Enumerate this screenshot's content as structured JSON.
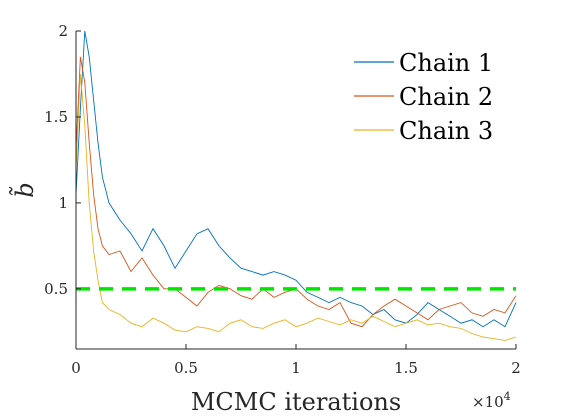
{
  "chart_data": {
    "type": "line",
    "title": "",
    "xlabel": "MCMC iterations",
    "ylabel": "b̃",
    "xlim": [
      0,
      20000
    ],
    "ylim": [
      0.15,
      2.0
    ],
    "x_exponent_label": "×10",
    "x_exponent_power": "4",
    "x_ticks": [
      0,
      5000,
      10000,
      15000,
      20000
    ],
    "x_tick_labels": [
      "0",
      "0.5",
      "1",
      "1.5",
      "2"
    ],
    "y_ticks": [
      0.5,
      1.0,
      1.5,
      2.0
    ],
    "y_tick_labels": [
      "0.5",
      "1",
      "1.5",
      "2"
    ],
    "grid": false,
    "legend_position": "top-right",
    "reference_line": {
      "y": 0.5,
      "color": "#00e600",
      "style": "dashed"
    },
    "series": [
      {
        "name": "Chain 1",
        "color": "#0072bd",
        "x": [
          0,
          200,
          400,
          600,
          800,
          1000,
          1200,
          1500,
          2000,
          2500,
          3000,
          3500,
          4000,
          4500,
          5000,
          5500,
          6000,
          6500,
          7000,
          7500,
          8000,
          8500,
          9000,
          9500,
          10000,
          10500,
          11000,
          11500,
          12000,
          12500,
          13000,
          13500,
          14000,
          14500,
          15000,
          15500,
          16000,
          16500,
          17000,
          17500,
          18000,
          18500,
          19000,
          19500,
          20000
        ],
        "y": [
          1.05,
          1.55,
          2.0,
          1.85,
          1.6,
          1.35,
          1.15,
          1.0,
          0.9,
          0.82,
          0.72,
          0.85,
          0.75,
          0.62,
          0.72,
          0.82,
          0.85,
          0.75,
          0.68,
          0.62,
          0.6,
          0.58,
          0.6,
          0.58,
          0.55,
          0.48,
          0.45,
          0.42,
          0.45,
          0.42,
          0.4,
          0.35,
          0.38,
          0.32,
          0.3,
          0.35,
          0.42,
          0.38,
          0.34,
          0.3,
          0.32,
          0.28,
          0.32,
          0.28,
          0.42
        ]
      },
      {
        "name": "Chain 2",
        "color": "#d95319",
        "x": [
          0,
          200,
          400,
          600,
          800,
          1000,
          1200,
          1500,
          2000,
          2500,
          3000,
          3500,
          4000,
          4500,
          5000,
          5500,
          6000,
          6500,
          7000,
          7500,
          8000,
          8500,
          9000,
          9500,
          10000,
          10500,
          11000,
          11500,
          12000,
          12500,
          13000,
          13500,
          14000,
          14500,
          15000,
          15500,
          16000,
          16500,
          17000,
          17500,
          18000,
          18500,
          19000,
          19500,
          20000
        ],
        "y": [
          1.3,
          1.85,
          1.7,
          1.35,
          1.05,
          0.85,
          0.75,
          0.7,
          0.72,
          0.6,
          0.68,
          0.58,
          0.5,
          0.5,
          0.45,
          0.4,
          0.48,
          0.52,
          0.5,
          0.46,
          0.44,
          0.5,
          0.45,
          0.48,
          0.5,
          0.44,
          0.4,
          0.38,
          0.42,
          0.3,
          0.28,
          0.35,
          0.4,
          0.44,
          0.4,
          0.36,
          0.32,
          0.38,
          0.4,
          0.42,
          0.36,
          0.34,
          0.38,
          0.36,
          0.46
        ]
      },
      {
        "name": "Chain 3",
        "color": "#edb120",
        "x": [
          0,
          200,
          400,
          600,
          800,
          1000,
          1200,
          1500,
          2000,
          2500,
          3000,
          3500,
          4000,
          4500,
          5000,
          5500,
          6000,
          6500,
          7000,
          7500,
          8000,
          8500,
          9000,
          9500,
          10000,
          10500,
          11000,
          11500,
          12000,
          12500,
          13000,
          13500,
          14000,
          14500,
          15000,
          15500,
          16000,
          16500,
          17000,
          17500,
          18000,
          18500,
          19000,
          19500,
          20000
        ],
        "y": [
          1.2,
          1.75,
          1.45,
          1.0,
          0.72,
          0.55,
          0.42,
          0.38,
          0.35,
          0.3,
          0.28,
          0.33,
          0.3,
          0.26,
          0.25,
          0.28,
          0.27,
          0.25,
          0.3,
          0.32,
          0.28,
          0.27,
          0.3,
          0.32,
          0.28,
          0.3,
          0.33,
          0.31,
          0.29,
          0.32,
          0.3,
          0.34,
          0.31,
          0.28,
          0.3,
          0.32,
          0.29,
          0.3,
          0.28,
          0.27,
          0.24,
          0.22,
          0.21,
          0.2,
          0.22
        ]
      }
    ]
  }
}
